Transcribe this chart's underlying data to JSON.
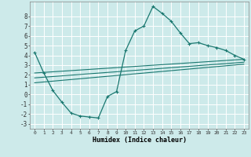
{
  "title": "",
  "xlabel": "Humidex (Indice chaleur)",
  "ylabel": "",
  "background_color": "#cdeaea",
  "grid_color": "#ffffff",
  "line_color": "#1a7870",
  "xlim": [
    -0.5,
    23.5
  ],
  "ylim": [
    -3.5,
    9.5
  ],
  "xticks": [
    0,
    1,
    2,
    3,
    4,
    5,
    6,
    7,
    8,
    9,
    10,
    11,
    12,
    13,
    14,
    15,
    16,
    17,
    18,
    19,
    20,
    21,
    22,
    23
  ],
  "yticks": [
    -3,
    -2,
    -1,
    0,
    1,
    2,
    3,
    4,
    5,
    6,
    7,
    8
  ],
  "main_line_x": [
    0,
    1,
    2,
    3,
    4,
    5,
    6,
    7,
    8,
    9,
    10,
    11,
    12,
    13,
    14,
    15,
    16,
    17,
    18,
    19,
    20,
    21,
    22,
    23
  ],
  "main_line_y": [
    4.3,
    2.2,
    0.4,
    -0.8,
    -1.9,
    -2.2,
    -2.3,
    -2.4,
    -0.2,
    0.3,
    4.5,
    6.5,
    7.0,
    9.0,
    8.3,
    7.5,
    6.3,
    5.2,
    5.3,
    5.0,
    4.8,
    4.5,
    4.0,
    3.6
  ],
  "reg_line1_x": [
    0,
    23
  ],
  "reg_line1_y": [
    2.2,
    3.6
  ],
  "reg_line2_x": [
    0,
    23
  ],
  "reg_line2_y": [
    1.7,
    3.3
  ],
  "reg_line3_x": [
    0,
    23
  ],
  "reg_line3_y": [
    1.2,
    3.1
  ]
}
